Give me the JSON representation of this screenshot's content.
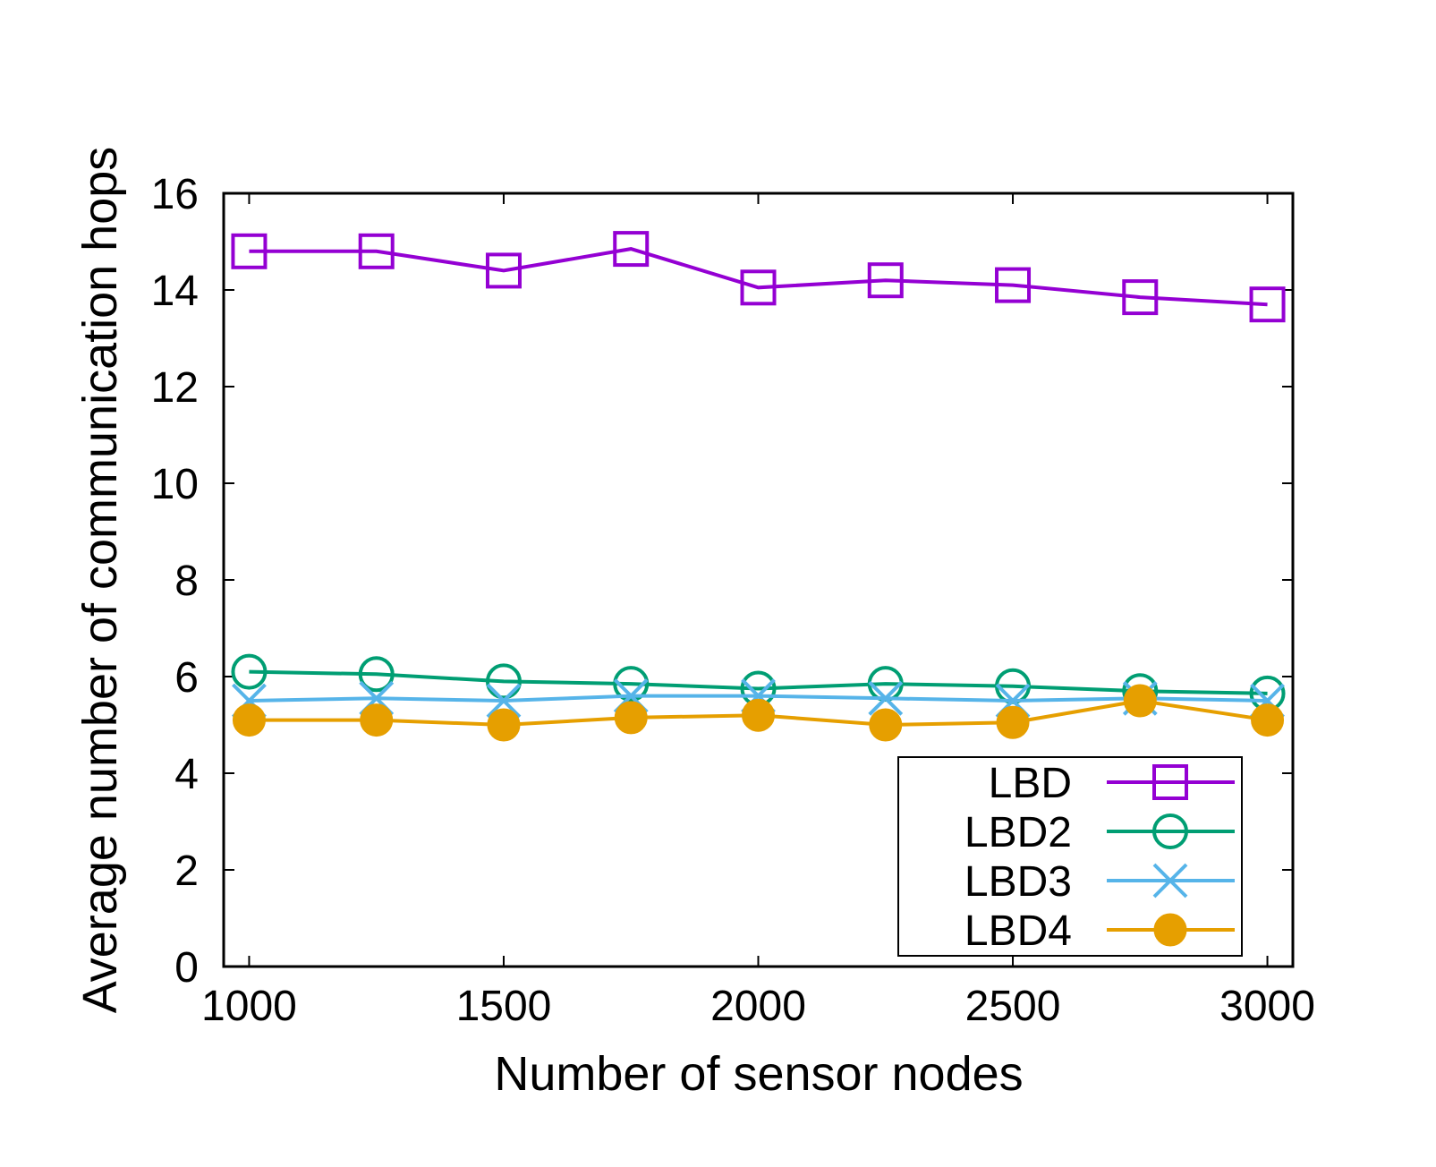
{
  "chart_data": {
    "type": "line",
    "title": "",
    "xlabel": "Number of sensor nodes",
    "ylabel": "Average number of communication hops",
    "xlim": [
      950,
      3050
    ],
    "ylim": [
      0,
      16
    ],
    "xticks": [
      1000,
      1500,
      2000,
      2500,
      3000
    ],
    "xtick_labels": [
      "1000",
      "1500",
      "2000",
      "2500",
      "3000"
    ],
    "yticks": [
      0,
      2,
      4,
      6,
      8,
      10,
      12,
      14,
      16
    ],
    "ytick_labels": [
      "0",
      "2",
      "4",
      "6",
      "8",
      "10",
      "12",
      "14",
      "16"
    ],
    "grid": false,
    "legend_position": "bottom-right",
    "x": [
      1000,
      1250,
      1500,
      1750,
      2000,
      2250,
      2500,
      2750,
      3000
    ],
    "series": [
      {
        "name": "LBD",
        "color": "#9400d3",
        "marker": "square",
        "values": [
          14.8,
          14.8,
          14.4,
          14.85,
          14.05,
          14.2,
          14.1,
          13.85,
          13.7
        ]
      },
      {
        "name": "LBD2",
        "color": "#009e73",
        "marker": "open-circle",
        "values": [
          6.1,
          6.05,
          5.9,
          5.85,
          5.75,
          5.85,
          5.8,
          5.7,
          5.65
        ]
      },
      {
        "name": "LBD3",
        "color": "#56b4e9",
        "marker": "cross",
        "values": [
          5.5,
          5.55,
          5.5,
          5.6,
          5.6,
          5.55,
          5.5,
          5.55,
          5.5
        ]
      },
      {
        "name": "LBD4",
        "color": "#e69f00",
        "marker": "filled-circle",
        "values": [
          5.1,
          5.1,
          5.0,
          5.15,
          5.2,
          5.0,
          5.05,
          5.5,
          5.1
        ]
      }
    ]
  }
}
